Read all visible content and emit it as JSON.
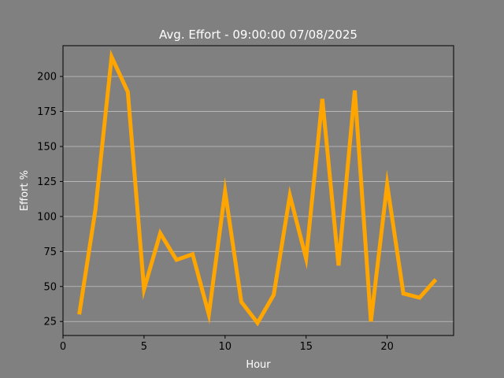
{
  "chart_data": {
    "type": "line",
    "title": "Avg. Effort - 09:00:00 07/08/2025",
    "xlabel": "Hour",
    "ylabel": "Effort %",
    "xlim": [
      0,
      24.1
    ],
    "ylim": [
      15,
      222
    ],
    "xticks": [
      0,
      5,
      10,
      15,
      20
    ],
    "yticks": [
      25,
      50,
      75,
      100,
      125,
      150,
      175,
      200
    ],
    "grid": "horizontal",
    "colors": {
      "background": "#808080",
      "line": "#FFA500"
    },
    "series": [
      {
        "x": [
          1,
          2,
          3,
          4,
          5,
          6,
          7,
          8,
          9,
          10,
          11,
          12,
          13,
          14,
          15,
          16,
          17,
          18,
          19,
          20,
          21,
          22,
          23
        ],
        "values": [
          30,
          105,
          214,
          189,
          48,
          88,
          69,
          73,
          30,
          118,
          39,
          24,
          44,
          115,
          70,
          184,
          65,
          190,
          25,
          123,
          45,
          42,
          55
        ]
      }
    ]
  }
}
